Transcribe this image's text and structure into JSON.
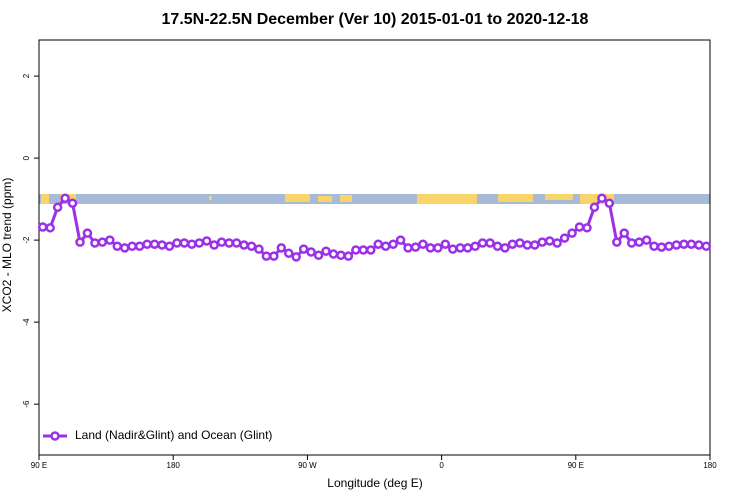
{
  "chart_data": {
    "type": "line",
    "title": "17.5N-22.5N December (Ver 10)   2015-01-01 to 2020-12-18",
    "x_label": "Longitude (deg E)",
    "y_label": "XCO2 - MLO trend (ppm)",
    "xlim": [
      90,
      540
    ],
    "ylim": [
      -7.24,
      2.88
    ],
    "xticks": [
      {
        "value": 90,
        "label": "90 E"
      },
      180,
      {
        "value": 270,
        "label": "90 W"
      },
      {
        "value": 360,
        "label": "0"
      },
      {
        "value": 450,
        "label": "90 E"
      },
      {
        "value": 540,
        "label": "180"
      }
    ],
    "yticks": [
      -6,
      -4,
      -2,
      0,
      2
    ],
    "legend_position": "bottom-left",
    "x": [
      92.5,
      97.5,
      102.5,
      107.5,
      112.5,
      117.5,
      122.5,
      127.5,
      132.5,
      137.5,
      142.5,
      147.5,
      152.5,
      157.5,
      162.5,
      167.5,
      172.5,
      177.5,
      182.5,
      187.5,
      192.5,
      197.5,
      202.5,
      207.5,
      212.5,
      217.5,
      222.5,
      227.5,
      232.5,
      237.5,
      242.5,
      247.5,
      252.5,
      257.5,
      262.5,
      267.5,
      272.5,
      277.5,
      282.5,
      287.5,
      292.5,
      297.5,
      302.5,
      307.5,
      312.5,
      317.5,
      322.5,
      327.5,
      332.5,
      337.5,
      342.5,
      347.5,
      352.5,
      357.5,
      362.5,
      367.5,
      372.5,
      377.5,
      382.5,
      387.5,
      392.5,
      397.5,
      402.5,
      407.5,
      412.5,
      417.5,
      422.5,
      427.5,
      432.5,
      437.5,
      442.5,
      447.5,
      452.5,
      457.5,
      462.5,
      467.5,
      472.5,
      477.5,
      482.5,
      487.5,
      492.5,
      497.5,
      502.5,
      507.5,
      512.5,
      517.5,
      522.5,
      527.5,
      532.5,
      537.5
    ],
    "series": [
      {
        "name": "Land (Nadir&Glint) and Ocean (Glint)",
        "color": "#9b30e8",
        "values": [
          -1.68,
          -1.7,
          -1.2,
          -0.98,
          -1.1,
          -2.05,
          -1.83,
          -2.07,
          -2.05,
          -2.0,
          -2.15,
          -2.19,
          -2.15,
          -2.15,
          -2.1,
          -2.1,
          -2.12,
          -2.15,
          -2.07,
          -2.07,
          -2.1,
          -2.07,
          -2.02,
          -2.12,
          -2.05,
          -2.07,
          -2.07,
          -2.12,
          -2.15,
          -2.22,
          -2.39,
          -2.39,
          -2.19,
          -2.32,
          -2.41,
          -2.22,
          -2.29,
          -2.37,
          -2.27,
          -2.34,
          -2.37,
          -2.39,
          -2.24,
          -2.24,
          -2.24,
          -2.1,
          -2.15,
          -2.1,
          -2.0,
          -2.19,
          -2.17,
          -2.1,
          -2.19,
          -2.19,
          -2.1,
          -2.22,
          -2.19,
          -2.19,
          -2.15,
          -2.07,
          -2.07,
          -2.15,
          -2.19,
          -2.1,
          -2.07,
          -2.12,
          -2.12,
          -2.05,
          -2.02,
          -2.07,
          -1.95,
          -1.83,
          -1.68,
          -1.7,
          -1.2,
          -0.98,
          -1.1,
          -2.05,
          -1.83,
          -2.07,
          -2.05,
          -2.0,
          -2.15,
          -2.17,
          -2.15,
          -2.12,
          -2.1,
          -2.1,
          -2.12,
          -2.15
        ]
      }
    ]
  }
}
